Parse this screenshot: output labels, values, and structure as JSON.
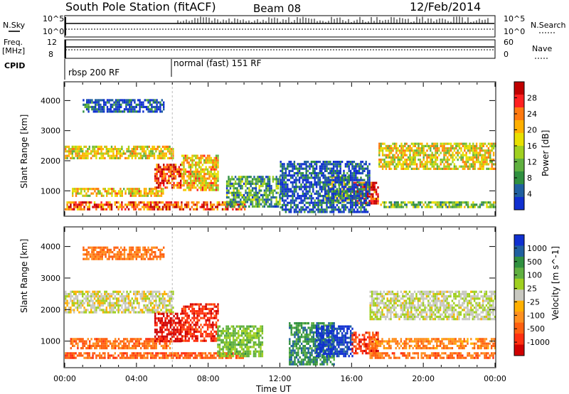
{
  "header": {
    "station": "South Pole Station (fitACF)",
    "beam": "Beam 08",
    "date": "12/Feb/2014"
  },
  "status_panels": {
    "left_labels": {
      "nsky": "N.Sky",
      "freq_line1": "Freq.",
      "freq_line2": "[MHz]",
      "cpid": "CPID"
    },
    "right_labels": {
      "nsearch": "N.Search",
      "nave": "Nave"
    },
    "noise_axis": {
      "top": "10^5",
      "bottom": "10^0"
    },
    "freq_axis": {
      "top": "12",
      "bottom": "8"
    },
    "nave_axis": {
      "top": "60",
      "bottom": "0"
    },
    "cpid_segments": [
      {
        "label": "rbsp 200 RF",
        "start_hour": 0
      },
      {
        "label": "normal (fast) 151 RF",
        "start_hour": 6
      }
    ]
  },
  "chart_data": [
    {
      "type": "heatmap",
      "name": "power",
      "ylabel": "Slant Range [km]",
      "xlabel": "",
      "xlim_hours": [
        0,
        24
      ],
      "ylim": [
        180,
        4600
      ],
      "yticks": [
        1000,
        2000,
        3000,
        4000
      ],
      "colorbar": {
        "label": "Power [dB]",
        "ticks": [
          "28",
          "24",
          "20",
          "16",
          "12",
          "8",
          "4"
        ],
        "colors": [
          "#c00000",
          "#ff2020",
          "#ff7a10",
          "#ffb000",
          "#e8e000",
          "#a0d020",
          "#60b040",
          "#309040",
          "#2060a0",
          "#1030d0"
        ]
      },
      "regions": [
        {
          "t": [
            0.0,
            6.0
          ],
          "r": [
            2050,
            2500
          ],
          "level": 0.55
        },
        {
          "t": [
            0.3,
            5.5
          ],
          "r": [
            850,
            1100
          ],
          "level": 0.6
        },
        {
          "t": [
            0.0,
            10.0
          ],
          "r": [
            400,
            650
          ],
          "level": 0.8
        },
        {
          "t": [
            5.0,
            6.5
          ],
          "r": [
            1100,
            1900
          ],
          "level": 0.85
        },
        {
          "t": [
            6.5,
            8.5
          ],
          "r": [
            1000,
            2200
          ],
          "level": 0.6
        },
        {
          "t": [
            1.0,
            5.5
          ],
          "r": [
            3600,
            4050
          ],
          "level": 0.1
        },
        {
          "t": [
            9.0,
            12.0
          ],
          "r": [
            500,
            1500
          ],
          "level": 0.3
        },
        {
          "t": [
            14.5,
            16.0
          ],
          "r": [
            600,
            1500
          ],
          "level": 0.5
        },
        {
          "t": [
            16.0,
            17.5
          ],
          "r": [
            600,
            1300
          ],
          "level": 0.9
        },
        {
          "t": [
            17.5,
            24.0
          ],
          "r": [
            1700,
            2600
          ],
          "level": 0.55
        },
        {
          "t": [
            17.5,
            24.0
          ],
          "r": [
            450,
            650
          ],
          "level": 0.4
        },
        {
          "t": [
            12.0,
            17.0
          ],
          "r": [
            300,
            2000
          ],
          "level": 0.1
        }
      ]
    },
    {
      "type": "heatmap",
      "name": "velocity",
      "ylabel": "Slant Range [km]",
      "xlabel": "Time UT",
      "xlim_hours": [
        0,
        24
      ],
      "xticks": [
        "00:00",
        "04:00",
        "08:00",
        "12:00",
        "16:00",
        "20:00",
        "00:00"
      ],
      "ylim": [
        180,
        4600
      ],
      "yticks": [
        1000,
        2000,
        3000,
        4000
      ],
      "colorbar": {
        "label": "Velocity [m s^-1]",
        "ticks": [
          "1000",
          "500",
          "100",
          "25",
          "-25",
          "-100",
          "-500",
          "-1000"
        ],
        "colors": [
          "#1030d0",
          "#2060a0",
          "#309040",
          "#60b040",
          "#a0d020",
          "#c8c8c0",
          "#ffb000",
          "#ff9020",
          "#ff6010",
          "#ff3010",
          "#d00000"
        ]
      },
      "regions": [
        {
          "t": [
            0.0,
            6.0
          ],
          "r": [
            1900,
            2600
          ],
          "v": 0.0
        },
        {
          "t": [
            0.3,
            6.0
          ],
          "r": [
            800,
            1100
          ],
          "v": -0.5
        },
        {
          "t": [
            0.0,
            10.0
          ],
          "r": [
            450,
            650
          ],
          "v": -0.55
        },
        {
          "t": [
            5.0,
            6.5
          ],
          "r": [
            1000,
            1900
          ],
          "v": -0.85
        },
        {
          "t": [
            6.5,
            8.5
          ],
          "r": [
            1000,
            2200
          ],
          "v": -0.75
        },
        {
          "t": [
            8.5,
            11.0
          ],
          "r": [
            500,
            1500
          ],
          "v": 0.3
        },
        {
          "t": [
            12.5,
            15.0
          ],
          "r": [
            300,
            1600
          ],
          "v": 0.55
        },
        {
          "t": [
            14.0,
            16.0
          ],
          "r": [
            500,
            1500
          ],
          "v": 0.9
        },
        {
          "t": [
            16.0,
            17.5
          ],
          "r": [
            600,
            1300
          ],
          "v": -0.7
        },
        {
          "t": [
            17.0,
            24.0
          ],
          "r": [
            1700,
            2600
          ],
          "v": 0.05
        },
        {
          "t": [
            17.0,
            24.0
          ],
          "r": [
            500,
            650
          ],
          "v": -0.5
        },
        {
          "t": [
            17.0,
            24.0
          ],
          "r": [
            750,
            1100
          ],
          "v": -0.4
        },
        {
          "t": [
            1.0,
            5.5
          ],
          "r": [
            3600,
            4000
          ],
          "v": -0.45
        }
      ]
    }
  ]
}
